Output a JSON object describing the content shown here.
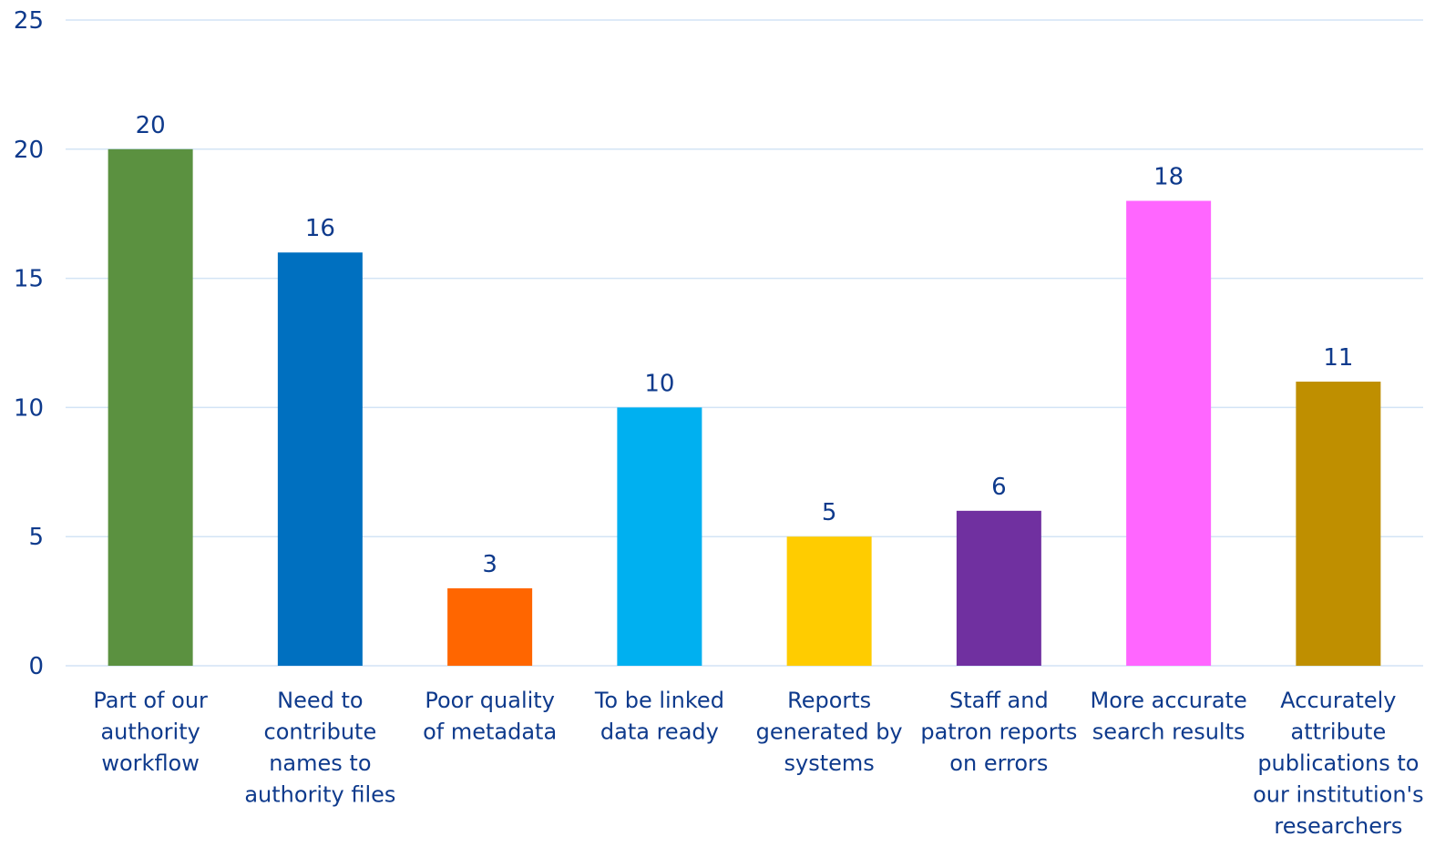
{
  "chart_data": {
    "type": "bar",
    "title": "",
    "xlabel": "",
    "ylabel": "",
    "categories": [
      [
        "Part of our",
        "authority",
        "workflow"
      ],
      [
        "Need to",
        "contribute",
        "names to",
        "authority files"
      ],
      [
        "Poor quality",
        "of metadata"
      ],
      [
        "To be linked",
        "data ready"
      ],
      [
        "Reports",
        "generated by",
        "systems"
      ],
      [
        "Staff and",
        "patron reports",
        "on errors"
      ],
      [
        "More accurate",
        "search results"
      ],
      [
        "Accurately",
        "attribute",
        "publications to",
        "our institution's",
        "researchers"
      ]
    ],
    "values": [
      20,
      16,
      3,
      10,
      5,
      6,
      18,
      11
    ],
    "colors": [
      "#5B9140",
      "#0070C0",
      "#FF6600",
      "#00B0F0",
      "#FFCC00",
      "#7030A0",
      "#FF66FF",
      "#BF8F00"
    ],
    "ylim": [
      0,
      25
    ],
    "yticks": [
      0,
      5,
      10,
      15,
      20,
      25
    ],
    "grid": true,
    "data_labels": true,
    "legend": "none",
    "text_color": "#0E3A8C",
    "grid_color": "#D3E4F5"
  }
}
